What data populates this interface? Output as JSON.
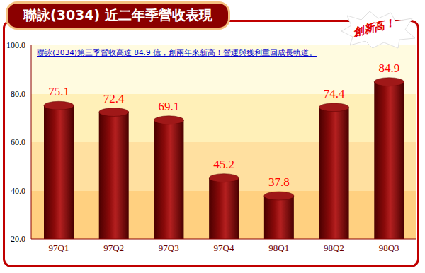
{
  "chart_data": {
    "type": "bar",
    "title": "聯詠(3034) 近二年季營收表現",
    "annotation": "聯詠(3034)第三季營收高達 84.9 億，創兩年來新高！營運與獲利重回成長軌道。",
    "badge": "創新高！",
    "categories": [
      "97Q1",
      "97Q2",
      "97Q3",
      "97Q4",
      "98Q1",
      "98Q2",
      "98Q3"
    ],
    "values": [
      75.1,
      72.4,
      69.1,
      45.2,
      37.8,
      74.4,
      84.9
    ],
    "color": "#8b0a0a",
    "ylim": [
      20,
      100
    ],
    "yticks": [
      {
        "value": 20,
        "label": "20.0"
      },
      {
        "value": 40,
        "label": "40.0"
      },
      {
        "value": 60,
        "label": "60.0"
      },
      {
        "value": 80,
        "label": "80.0"
      },
      {
        "value": 100,
        "label": "100.0"
      }
    ],
    "data_labels": true
  }
}
